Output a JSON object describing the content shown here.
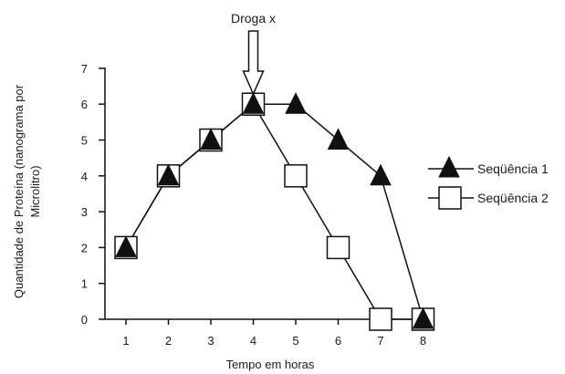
{
  "chart_data": {
    "type": "line",
    "xlabel": "Tempo em horas",
    "ylabel": "Quantidade de Proteína (nanograma por Microlitro)",
    "ylabel_lines": [
      "Quantidade de Proteína (nanograma por",
      "Microlitro)"
    ],
    "xlim": [
      1,
      8
    ],
    "ylim": [
      0,
      7
    ],
    "x_ticks": [
      "1",
      "2",
      "3",
      "4",
      "5",
      "6",
      "7",
      "8"
    ],
    "y_ticks": [
      "0",
      "1",
      "2",
      "3",
      "4",
      "5",
      "6",
      "7"
    ],
    "grid": false,
    "legend_position": "right",
    "annotation": {
      "text": "Droga x",
      "x": 4
    },
    "series": [
      {
        "name": "Seqüência 1",
        "marker": "triangle",
        "x": [
          1,
          2,
          3,
          4,
          5,
          6,
          7,
          8
        ],
        "y": [
          2,
          4,
          5,
          6,
          6,
          5,
          4,
          0
        ]
      },
      {
        "name": "Seqüência 2",
        "marker": "square",
        "x": [
          1,
          2,
          3,
          4,
          5,
          6,
          7,
          8
        ],
        "y": [
          2,
          4,
          5,
          6,
          4,
          2,
          0,
          0
        ]
      }
    ],
    "colors": {
      "ink": "#111111",
      "marker_fill_square": "#ffffff",
      "marker_fill_triangle": "#111111"
    }
  }
}
